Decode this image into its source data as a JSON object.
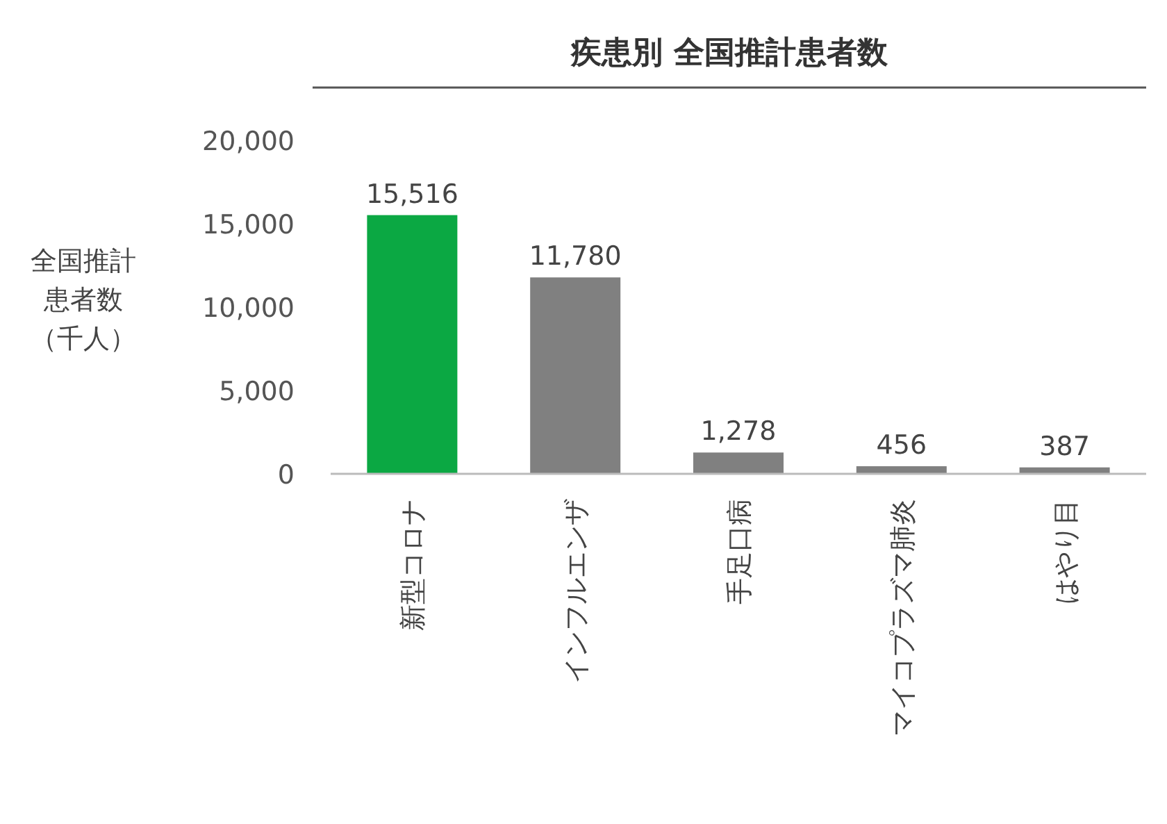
{
  "chart_data": {
    "type": "bar",
    "title": "疾患別 全国推計患者数",
    "ylabel": "全国推計患者数（千人）",
    "categories": [
      "新型コロナ",
      "インフルエンザ",
      "手足口病",
      "マイコプラズマ肺炎",
      "はやり目"
    ],
    "values": [
      15516,
      11780,
      1278,
      456,
      387
    ],
    "colors": [
      "#0ba843",
      "#808080",
      "#808080",
      "#808080",
      "#808080"
    ],
    "ylim": [
      0,
      20000
    ],
    "yticks": [
      {
        "value": 0,
        "label": "0"
      },
      {
        "value": 5000,
        "label": "5,000"
      },
      {
        "value": 10000,
        "label": "10,000"
      },
      {
        "value": 15000,
        "label": "15,000"
      },
      {
        "value": 20000,
        "label": "20,000"
      }
    ],
    "value_labels": [
      "15,516",
      "11,780",
      "1,278",
      "456",
      "387"
    ],
    "grid": false
  }
}
